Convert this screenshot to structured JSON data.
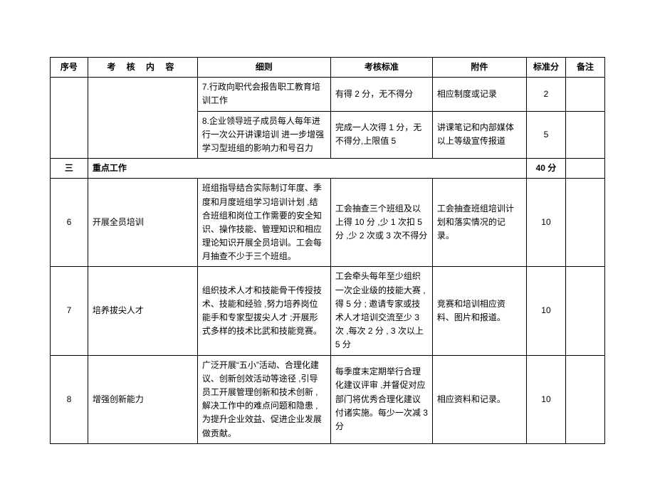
{
  "headers": {
    "xuhao": "序号",
    "neirong": "考 核 内 容",
    "xize": "细则",
    "biaozhun": "考核标准",
    "fujian": "附件",
    "fen": "标准分",
    "beizhu": "备注"
  },
  "rows": {
    "r1": {
      "xize": "7.行政向职代会报告职工教育培训工作",
      "biaozhun": "有得 2 分，无不得分",
      "fujian": "相应制度或记录",
      "fen": "2"
    },
    "r2": {
      "xize": "8.企业领导班子成员每人每年进行一次公开讲课培训 进一步增强学习型班组的影响力和号召力",
      "biaozhun": "完成一人次得 1 分，无不得分,上限值 5",
      "fujian": "讲课笔记和内部媒体以上等级宣传报道",
      "fen": "5"
    },
    "section": {
      "num": "三",
      "title": "重点工作",
      "fen": "40 分"
    },
    "r3": {
      "xuhao": "6",
      "neirong": "开展全员培训",
      "xize": "班组指导结合实际制订年度、季度和月度班组学习培训计划 ,结合班组和岗位工作需要的安全知识、操作技能、管理知识和相应理论知识开展全员培训。工会每月抽查不少于三个班组。",
      "biaozhun": "工会抽查三个班组及以上得 10 分 ,少 1 次扣 5 分 ,少 2 次或 3 次不得分",
      "fujian": "工会抽查班组培训计划和落实情况的记录。",
      "fen": "10"
    },
    "r4": {
      "xuhao": "7",
      "neirong": "培养拔尖人才",
      "xize": "组织技术人才和技能骨干传授技术、技能和经验 ,努力培养岗位能手和专家型拔尖人才 ;开展形式多样的技术比武和技能竞赛。",
      "biaozhun": "工会牵头每年至少组织一次企业级的技能大赛 , 得 5 分 ; 邀请专家或技术人才培训交流至少 3 次 ,每次 2 分 , 3 次以上 5 分",
      "fujian": "竞赛和培训相应资料、图片和报道。",
      "fen": "10"
    },
    "r5": {
      "xuhao": "8",
      "neirong": "增强创新能力",
      "xize": "广泛开展“五小”活动、合理化建议、创新创效活动等途径 ,引导员工开展管理创新和技术创新 ,解决工作中的难点问题和隐患 ,为提升企业效益、促进企业发展做贡献。",
      "biaozhun": "每季度末定期举行合理化建议评审 ,并督促对应部门将优秀合理化建议付诸实施。每少一次减 3 分",
      "fujian": "相应资料和记录。",
      "fen": "10"
    }
  }
}
